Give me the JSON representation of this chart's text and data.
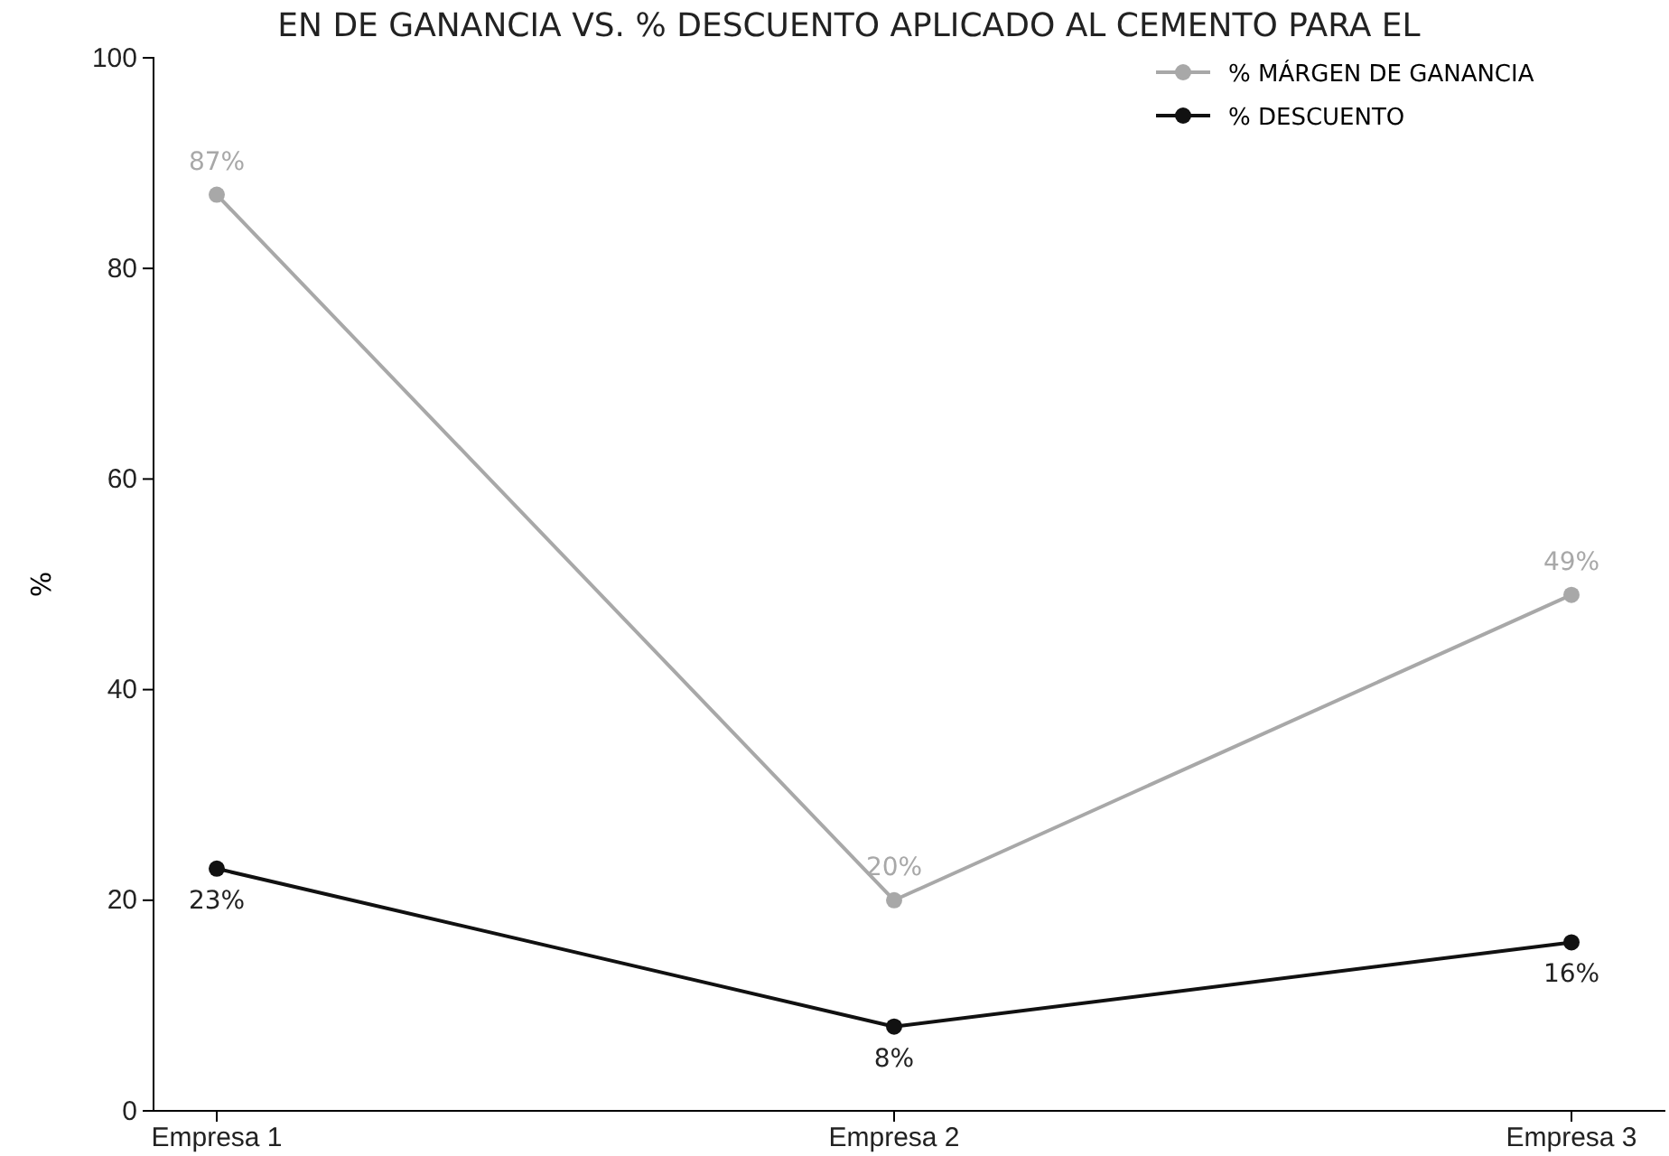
{
  "chart_data": {
    "type": "line",
    "title": "EN DE GANANCIA VS. % DESCUENTO APLICADO AL CEMENTO PARA EL",
    "ylabel": "%",
    "categories": [
      "Empresa 1",
      "Empresa 2",
      "Empresa 3"
    ],
    "series": [
      {
        "name": "% MÁRGEN DE GANANCIA",
        "color": "#a8a8a8",
        "values": [
          87,
          20,
          49
        ],
        "value_labels": [
          "87%",
          "20%",
          "49%"
        ]
      },
      {
        "name": "% DESCUENTO",
        "color": "#111111",
        "values": [
          23,
          8,
          16
        ],
        "value_labels": [
          "23%",
          "8%",
          "16%"
        ]
      }
    ],
    "ylim": [
      0,
      100
    ],
    "yticks": [
      0,
      20,
      40,
      60,
      80,
      100
    ],
    "legend": "top right",
    "marker": "circle",
    "line_style": "solid",
    "grid": false
  }
}
